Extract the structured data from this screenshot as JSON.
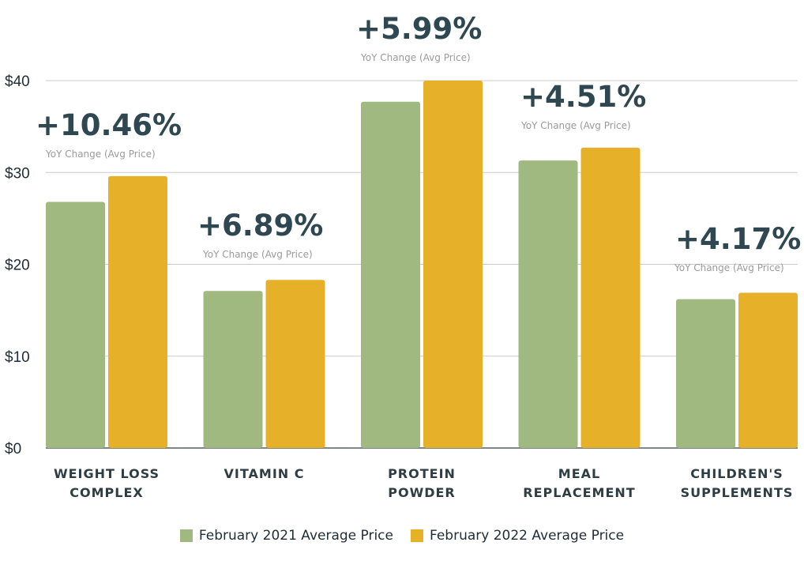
{
  "chart_data": {
    "type": "bar",
    "categories": [
      [
        "WEIGHT LOSS",
        "COMPLEX"
      ],
      [
        "VITAMIN C"
      ],
      [
        "PROTEIN",
        "POWDER"
      ],
      [
        "MEAL",
        "REPLACEMENT"
      ],
      [
        "CHILDREN'S",
        "SUPPLEMENTS"
      ]
    ],
    "series": [
      {
        "name": "February 2021 Average Price",
        "color": "#a0b981",
        "values": [
          26.8,
          17.1,
          37.7,
          31.3,
          16.2
        ]
      },
      {
        "name": "February 2022 Average Price",
        "color": "#e6b028",
        "values": [
          29.6,
          18.3,
          40.0,
          32.7,
          16.9
        ]
      }
    ],
    "ylim": [
      0,
      40
    ],
    "yticks": [
      "$0",
      "$10",
      "$20",
      "$30",
      "$40"
    ],
    "ytick_values": [
      0,
      10,
      20,
      30,
      40
    ],
    "grid": true,
    "legend_position": "bottom",
    "annotations": [
      {
        "value": "+10.46%",
        "subtitle": "YoY Change (Avg Price)"
      },
      {
        "value": "+6.89%",
        "subtitle": "YoY Change (Avg Price)"
      },
      {
        "value": "+5.99%",
        "subtitle": "YoY Change (Avg Price)"
      },
      {
        "value": "+4.51%",
        "subtitle": "YoY Change (Avg Price)"
      },
      {
        "value": "+4.17%",
        "subtitle": "YoY Change (Avg Price)"
      }
    ]
  }
}
